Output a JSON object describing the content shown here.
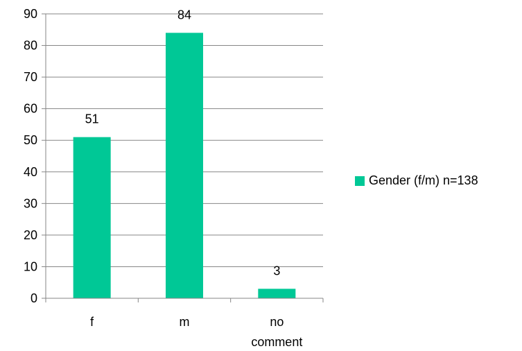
{
  "chart_data": {
    "type": "bar",
    "categories": [
      "f",
      "m",
      "no comment"
    ],
    "series": [
      {
        "name": "Gender (f/m) n=138",
        "values": [
          51,
          84,
          3
        ]
      }
    ],
    "data_labels": [
      "51",
      "84",
      "3"
    ],
    "ylim": [
      0,
      90
    ],
    "yticks": [
      0,
      10,
      20,
      30,
      40,
      50,
      60,
      70,
      80,
      90
    ],
    "title": "",
    "xlabel": "",
    "ylabel": "",
    "grid": true,
    "legend_position": "right",
    "bar_color": "#00c896"
  }
}
